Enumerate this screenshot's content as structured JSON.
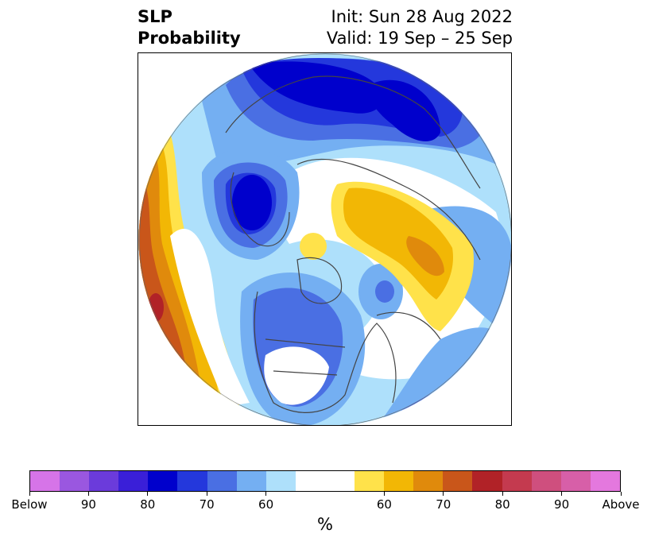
{
  "header": {
    "title_line1": "SLP",
    "title_line2": "Probability",
    "init": "Init: Sun 28 Aug 2022",
    "valid": "Valid: 19 Sep – 25 Sep"
  },
  "colorbar": {
    "colors": [
      "#d674e8",
      "#9a57e0",
      "#6b3bdb",
      "#3a1fd8",
      "#0000cc",
      "#2438dc",
      "#4a6fe3",
      "#74aff2",
      "#aee0fb",
      "#ffffff",
      "#ffe24a",
      "#f2b705",
      "#e08a0c",
      "#c9561a",
      "#b12227",
      "#c43a4f",
      "#cf4f7e",
      "#d75fa8",
      "#e478de"
    ],
    "tick_labels": [
      "Below",
      "90",
      "80",
      "70",
      "60",
      "60",
      "70",
      "80",
      "90",
      "Above"
    ],
    "unit": "%"
  },
  "map": {
    "projection": "north polar stereographic",
    "fields": [
      {
        "region": "Eurasia / Arctic",
        "category": "Below",
        "max_level": "80"
      },
      {
        "region": "North Pacific",
        "category": "Above",
        "max_level": "80"
      },
      {
        "region": "Arctic Ocean to Urals",
        "category": "Above",
        "max_level": "70"
      },
      {
        "region": "Northern North America",
        "category": "Below",
        "max_level": "70"
      },
      {
        "region": "Greenland",
        "category": "Above",
        "max_level": "60"
      }
    ]
  }
}
